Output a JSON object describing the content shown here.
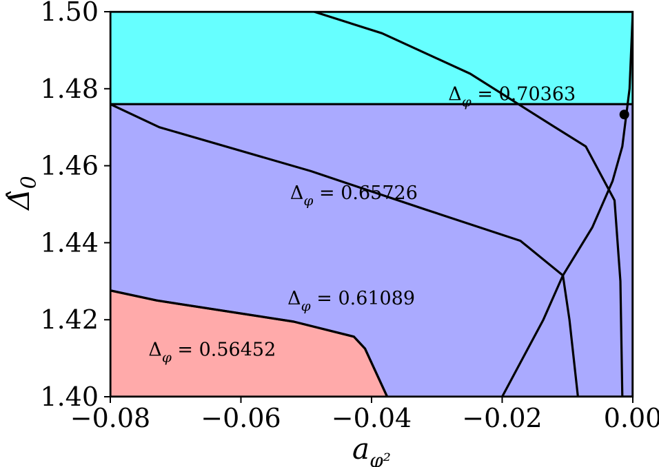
{
  "chart_data": {
    "type": "area",
    "title": "",
    "xlabel": "a_{φ²}",
    "ylabel": "Δ̂₀",
    "xlim": [
      -0.08,
      0.0
    ],
    "ylim": [
      1.4,
      1.5
    ],
    "grid": false,
    "x_ticks": [
      -0.08,
      -0.06,
      -0.04,
      -0.02,
      0.0
    ],
    "x_tick_labels": [
      "−0.08",
      "−0.06",
      "−0.04",
      "−0.02",
      "0.00"
    ],
    "y_ticks": [
      1.4,
      1.42,
      1.44,
      1.46,
      1.48,
      1.5
    ],
    "y_tick_labels": [
      "1.40",
      "1.42",
      "1.44",
      "1.46",
      "1.48",
      "1.50"
    ],
    "regions": [
      {
        "label": "Δ_φ = 0.70363",
        "delta_phi": "0.70363",
        "color": "#66ff66",
        "label_at": [
          -0.0185,
          1.477
        ],
        "boundary": [
          [
            -0.0488,
            1.5
          ],
          [
            -0.0384,
            1.4944
          ],
          [
            -0.0249,
            1.4839
          ],
          [
            -0.0121,
            1.4702
          ],
          [
            -0.0072,
            1.465
          ],
          [
            -0.0028,
            1.451
          ],
          [
            -0.0019,
            1.43
          ],
          [
            -0.0016,
            1.4
          ],
          [
            0.0,
            1.4
          ],
          [
            0.0,
            1.5
          ]
        ]
      },
      {
        "label": "Δ_φ = 0.65726",
        "delta_phi": "0.65726",
        "color": "#66ffff",
        "label_at": [
          -0.0427,
          1.4513
        ],
        "boundary": [
          [
            -0.08,
            1.5
          ],
          [
            -0.08,
            1.476
          ],
          [
            -0.0725,
            1.47
          ],
          [
            -0.0493,
            1.4586
          ],
          [
            -0.0317,
            1.4486
          ],
          [
            -0.0172,
            1.4405
          ],
          [
            -0.0107,
            1.4315
          ],
          [
            -0.0097,
            1.42
          ],
          [
            -0.0084,
            1.4
          ],
          [
            0.0,
            1.4
          ],
          [
            0.0,
            1.5
          ]
        ]
      },
      {
        "label": "Δ_φ = 0.61089",
        "delta_phi": "0.61089",
        "color": "#aaaaff",
        "label_at": [
          -0.0431,
          1.424
        ],
        "boundary": [
          [
            -0.08,
            1.476
          ],
          [
            -0.08,
            1.4276
          ],
          [
            -0.0729,
            1.425
          ],
          [
            -0.0519,
            1.4195
          ],
          [
            -0.0427,
            1.4156
          ],
          [
            -0.041,
            1.4125
          ],
          [
            -0.0376,
            1.4
          ],
          [
            0.0,
            1.4
          ],
          [
            0.0,
            1.476
          ]
        ]
      },
      {
        "label": "Δ_φ = 0.56452",
        "delta_phi": "0.56452",
        "color": "#ffaaaa",
        "label_at": [
          -0.0644,
          1.4106
        ],
        "boundary": [
          [
            -0.08,
            1.4276
          ],
          [
            -0.08,
            1.4
          ],
          [
            -0.0376,
            1.4
          ],
          [
            -0.041,
            1.4125
          ],
          [
            -0.0427,
            1.4156
          ],
          [
            -0.0519,
            1.4195
          ],
          [
            -0.0729,
            1.425
          ]
        ]
      }
    ],
    "curves": [
      {
        "name": "",
        "points": [
          [
            -0.02,
            1.4
          ],
          [
            -0.0137,
            1.42
          ],
          [
            -0.0107,
            1.4315
          ],
          [
            -0.0062,
            1.444
          ],
          [
            -0.0031,
            1.456
          ],
          [
            -0.0016,
            1.465
          ],
          [
            -0.0005,
            1.48
          ],
          [
            0.0,
            1.5
          ]
        ]
      }
    ],
    "markers": [
      {
        "x": -0.0013,
        "y": 1.4733
      }
    ]
  }
}
